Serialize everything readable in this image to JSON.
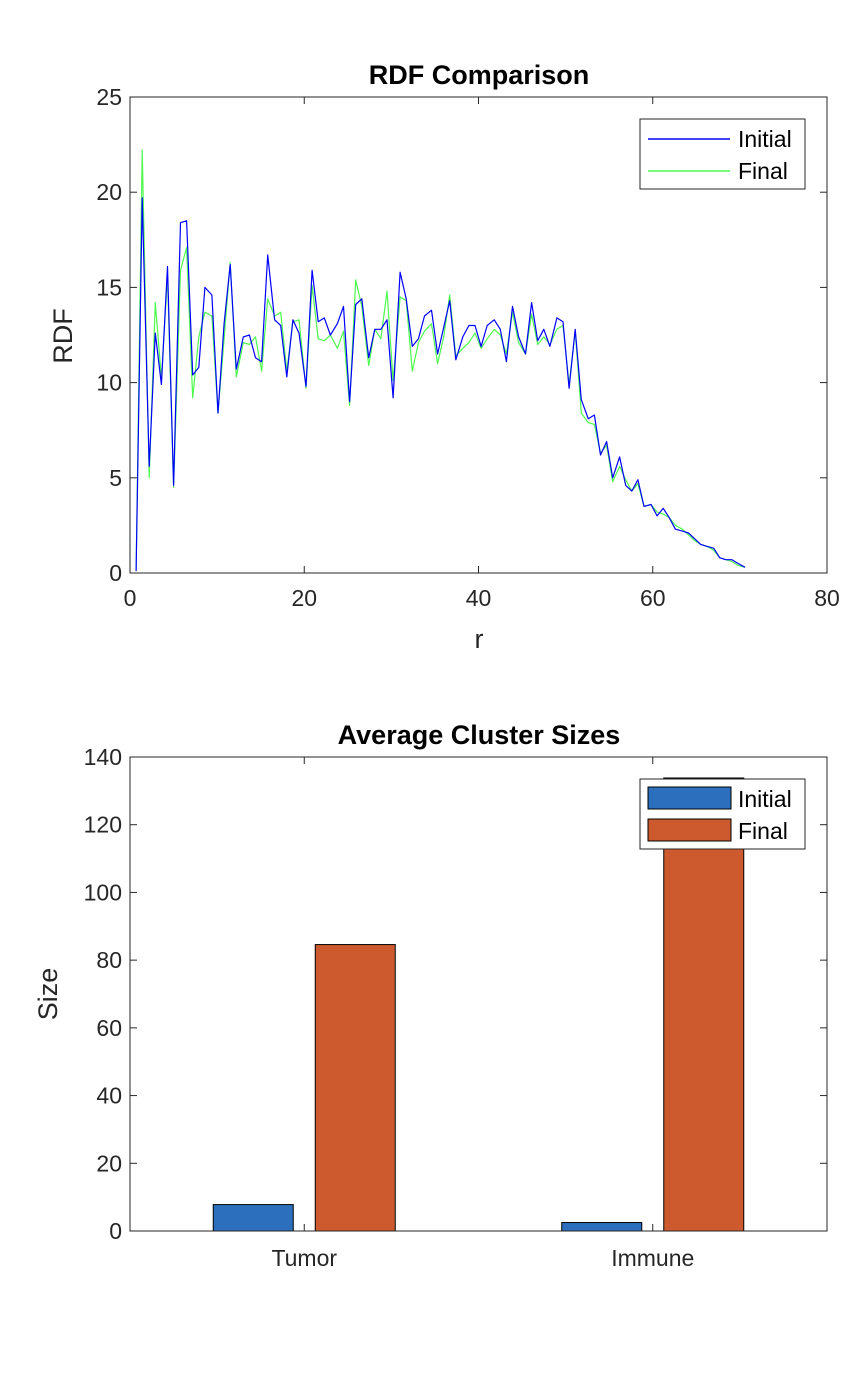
{
  "chart_data": [
    {
      "type": "line",
      "title": "RDF Comparison",
      "xlabel": "r",
      "ylabel": "RDF",
      "xlim": [
        0,
        80
      ],
      "ylim": [
        0,
        25
      ],
      "xticks": [
        "0",
        "20",
        "40",
        "60",
        "80"
      ],
      "yticks": [
        "0",
        "5",
        "10",
        "15",
        "20",
        "25"
      ],
      "grid": false,
      "legend_position": "top-right",
      "series": [
        {
          "name": "Initial",
          "color": "#0000ff",
          "x": [
            0.7,
            1.4,
            2.2,
            2.9,
            3.6,
            4.3,
            5.0,
            5.8,
            6.5,
            7.2,
            7.9,
            8.6,
            9.4,
            10.1,
            10.8,
            11.5,
            12.2,
            13.0,
            13.7,
            14.4,
            15.1,
            15.8,
            16.6,
            17.3,
            18.0,
            18.7,
            19.4,
            20.2,
            20.9,
            21.6,
            22.3,
            23.0,
            23.8,
            24.5,
            25.2,
            25.9,
            26.6,
            27.4,
            28.1,
            28.8,
            29.5,
            30.2,
            31.0,
            31.7,
            32.4,
            33.1,
            33.8,
            34.6,
            35.3,
            36.0,
            36.7,
            37.4,
            38.2,
            38.9,
            39.6,
            40.3,
            41.0,
            41.8,
            42.5,
            43.2,
            43.9,
            44.6,
            45.4,
            46.1,
            46.8,
            47.5,
            48.2,
            49.0,
            49.7,
            50.4,
            51.1,
            51.8,
            52.6,
            53.3,
            54.0,
            54.7,
            55.4,
            56.2,
            56.9,
            57.6,
            58.3,
            59.0,
            59.8,
            60.5,
            61.2,
            61.9,
            62.6,
            63.4,
            64.1,
            64.8,
            65.5,
            66.2,
            67.0,
            67.7,
            68.4,
            69.1,
            69.8,
            70.6
          ],
          "values": [
            0.1,
            19.7,
            5.6,
            12.6,
            9.9,
            16.1,
            4.6,
            18.4,
            18.5,
            10.4,
            10.8,
            15.0,
            14.6,
            8.4,
            13.1,
            16.2,
            10.7,
            12.4,
            12.5,
            11.3,
            11.1,
            16.7,
            13.3,
            13.0,
            10.3,
            13.3,
            12.6,
            9.8,
            15.9,
            13.2,
            13.4,
            12.5,
            13.1,
            14.0,
            9.0,
            14.1,
            14.4,
            11.3,
            12.8,
            12.8,
            13.3,
            9.2,
            15.8,
            14.4,
            11.9,
            12.3,
            13.5,
            13.8,
            11.5,
            12.9,
            14.3,
            11.2,
            12.4,
            13.0,
            13.0,
            11.9,
            13.0,
            13.3,
            12.8,
            11.1,
            14.0,
            12.4,
            11.5,
            14.2,
            12.2,
            12.8,
            11.9,
            13.4,
            13.2,
            9.7,
            12.8,
            9.1,
            8.1,
            8.3,
            6.2,
            6.9,
            5.0,
            6.1,
            4.6,
            4.3,
            4.9,
            3.5,
            3.6,
            3.0,
            3.4,
            2.9,
            2.3,
            2.2,
            2.1,
            1.8,
            1.5,
            1.4,
            1.3,
            0.8,
            0.7,
            0.7,
            0.5,
            0.3
          ]
        },
        {
          "name": "Final",
          "color": "#4dfa4d",
          "x": [
            0.7,
            1.4,
            2.2,
            2.9,
            3.6,
            4.3,
            5.0,
            5.8,
            6.5,
            7.2,
            7.9,
            8.6,
            9.4,
            10.1,
            10.8,
            11.5,
            12.2,
            13.0,
            13.7,
            14.4,
            15.1,
            15.8,
            16.6,
            17.3,
            18.0,
            18.7,
            19.4,
            20.2,
            20.9,
            21.6,
            22.3,
            23.0,
            23.8,
            24.5,
            25.2,
            25.9,
            26.6,
            27.4,
            28.1,
            28.8,
            29.5,
            30.2,
            31.0,
            31.7,
            32.4,
            33.1,
            33.8,
            34.6,
            35.3,
            36.0,
            36.7,
            37.4,
            38.2,
            38.9,
            39.6,
            40.3,
            41.0,
            41.8,
            42.5,
            43.2,
            43.9,
            44.6,
            45.4,
            46.1,
            46.8,
            47.5,
            48.2,
            49.0,
            49.7,
            50.4,
            51.1,
            51.8,
            52.6,
            53.3,
            54.0,
            54.7,
            55.4,
            56.2,
            56.9,
            57.6,
            58.3,
            59.0,
            59.8,
            60.5,
            61.2,
            61.9,
            62.6,
            63.4,
            64.1,
            64.8,
            65.5,
            66.2,
            67.0,
            67.7,
            68.4,
            69.1,
            69.8,
            70.6
          ],
          "values": [
            0.2,
            22.2,
            5.0,
            14.2,
            10.2,
            15.6,
            4.5,
            15.9,
            17.1,
            9.2,
            12.4,
            13.7,
            13.5,
            8.4,
            12.3,
            16.3,
            10.3,
            12.1,
            12.0,
            12.4,
            10.6,
            14.4,
            13.5,
            13.7,
            10.6,
            13.2,
            13.3,
            9.7,
            15.1,
            12.3,
            12.2,
            12.5,
            11.8,
            12.7,
            8.8,
            15.4,
            14.0,
            10.9,
            12.8,
            12.3,
            14.8,
            10.1,
            14.5,
            14.3,
            10.6,
            12.1,
            12.7,
            13.1,
            11.0,
            12.4,
            14.6,
            11.4,
            11.8,
            12.1,
            12.6,
            11.8,
            12.3,
            12.8,
            12.5,
            11.5,
            13.7,
            12.1,
            11.5,
            13.6,
            12.0,
            12.4,
            12.0,
            12.8,
            13.0,
            9.9,
            12.7,
            8.4,
            7.9,
            7.8,
            6.3,
            6.7,
            4.8,
            5.6,
            4.9,
            4.3,
            4.7,
            3.5,
            3.6,
            3.2,
            3.1,
            2.9,
            2.5,
            2.3,
            2.0,
            1.7,
            1.5,
            1.4,
            1.2,
            0.8,
            0.7,
            0.6,
            0.4,
            0.3
          ]
        }
      ]
    },
    {
      "type": "bar",
      "title": "Average Cluster Sizes",
      "xlabel": "",
      "ylabel": "Size",
      "ylim": [
        0,
        140
      ],
      "yticks": [
        "0",
        "20",
        "40",
        "60",
        "80",
        "100",
        "120",
        "140"
      ],
      "categories": [
        "Tumor",
        "Immune"
      ],
      "grid": false,
      "legend_position": "top-right",
      "series": [
        {
          "name": "Initial",
          "color": "#2b6fbd",
          "values": [
            7.8,
            2.5
          ]
        },
        {
          "name": "Final",
          "color": "#cc5a2e",
          "values": [
            84.6,
            133.8
          ]
        }
      ]
    }
  ]
}
